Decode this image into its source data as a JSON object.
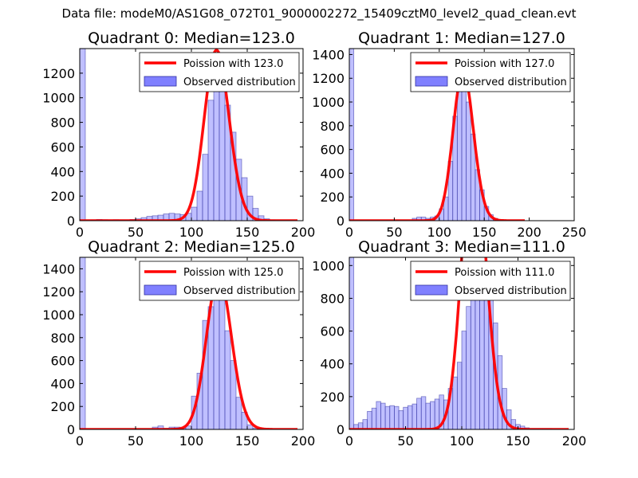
{
  "suptitle": "Data file: modeM0/AS1G08_072T01_9000002272_15409cztM0_level2_quad_clean.evt",
  "colors": {
    "bar_fill": "#8080ff",
    "bar_edge": "#3030a0",
    "poisson_line": "#ff0000",
    "axis": "#000000"
  },
  "chart_data": [
    {
      "type": "bar",
      "title": "Quadrant 0: Median=123.0",
      "xlim": [
        0,
        200
      ],
      "ylim": [
        0,
        1400
      ],
      "xticks": [
        0,
        50,
        100,
        150,
        200
      ],
      "yticks": [
        0,
        200,
        400,
        600,
        800,
        1000,
        1200
      ],
      "legend": [
        "Poission with 123.0",
        "Observed distribution"
      ],
      "bin_width": 5,
      "bins": [
        [
          0,
          1400
        ],
        [
          10,
          5
        ],
        [
          15,
          10
        ],
        [
          20,
          8
        ],
        [
          25,
          5
        ],
        [
          30,
          8
        ],
        [
          35,
          6
        ],
        [
          40,
          5
        ],
        [
          45,
          10
        ],
        [
          50,
          15
        ],
        [
          55,
          25
        ],
        [
          60,
          35
        ],
        [
          65,
          40
        ],
        [
          70,
          45
        ],
        [
          75,
          55
        ],
        [
          80,
          60
        ],
        [
          85,
          55
        ],
        [
          90,
          50
        ],
        [
          95,
          60
        ],
        [
          100,
          110
        ],
        [
          105,
          240
        ],
        [
          110,
          540
        ],
        [
          115,
          980
        ],
        [
          120,
          1230
        ],
        [
          125,
          1250
        ],
        [
          130,
          940
        ],
        [
          135,
          720
        ],
        [
          140,
          500
        ],
        [
          145,
          350
        ],
        [
          150,
          200
        ],
        [
          155,
          100
        ],
        [
          160,
          40
        ],
        [
          165,
          15
        ],
        [
          170,
          5
        ]
      ],
      "poisson_mean": 123.0
    },
    {
      "type": "bar",
      "title": "Quadrant 1: Median=127.0",
      "xlim": [
        0,
        250
      ],
      "ylim": [
        0,
        1450
      ],
      "xticks": [
        0,
        50,
        100,
        150,
        200,
        250
      ],
      "yticks": [
        0,
        200,
        400,
        600,
        800,
        1000,
        1200,
        1400
      ],
      "legend": [
        "Poission with 127.0",
        "Observed distribution"
      ],
      "bin_width": 5,
      "bins": [
        [
          0,
          1450
        ],
        [
          70,
          20
        ],
        [
          75,
          30
        ],
        [
          80,
          30
        ],
        [
          85,
          20
        ],
        [
          90,
          30
        ],
        [
          95,
          40
        ],
        [
          100,
          100
        ],
        [
          105,
          200
        ],
        [
          110,
          500
        ],
        [
          115,
          880
        ],
        [
          120,
          1330
        ],
        [
          125,
          1330
        ],
        [
          130,
          1000
        ],
        [
          135,
          730
        ],
        [
          140,
          430
        ],
        [
          145,
          260
        ],
        [
          150,
          120
        ],
        [
          155,
          50
        ],
        [
          160,
          20
        ]
      ],
      "poisson_mean": 127.0
    },
    {
      "type": "bar",
      "title": "Quadrant 2: Median=125.0",
      "xlim": [
        0,
        200
      ],
      "ylim": [
        0,
        1500
      ],
      "xticks": [
        0,
        50,
        100,
        150,
        200
      ],
      "yticks": [
        0,
        200,
        400,
        600,
        800,
        1000,
        1200,
        1400
      ],
      "legend": [
        "Poission with 125.0",
        "Observed distribution"
      ],
      "bin_width": 5,
      "bins": [
        [
          0,
          1500
        ],
        [
          65,
          20
        ],
        [
          70,
          30
        ],
        [
          75,
          10
        ],
        [
          80,
          20
        ],
        [
          85,
          20
        ],
        [
          90,
          10
        ],
        [
          95,
          30
        ],
        [
          100,
          290
        ],
        [
          105,
          490
        ],
        [
          110,
          950
        ],
        [
          115,
          1070
        ],
        [
          120,
          1400
        ],
        [
          125,
          1220
        ],
        [
          130,
          860
        ],
        [
          135,
          600
        ],
        [
          140,
          280
        ],
        [
          145,
          150
        ],
        [
          150,
          40
        ],
        [
          155,
          10
        ]
      ],
      "poisson_mean": 125.0
    },
    {
      "type": "bar",
      "title": "Quadrant 3: Median=111.0",
      "xlim": [
        0,
        200
      ],
      "ylim": [
        0,
        1050
      ],
      "xticks": [
        0,
        50,
        100,
        150,
        200
      ],
      "yticks": [
        0,
        200,
        400,
        600,
        800,
        1000
      ],
      "legend": [
        "Poission with 111.0",
        "Observed distribution"
      ],
      "bin_width": 4,
      "bins": [
        [
          0,
          1050
        ],
        [
          4,
          30
        ],
        [
          8,
          40
        ],
        [
          12,
          60
        ],
        [
          16,
          110
        ],
        [
          20,
          130
        ],
        [
          24,
          170
        ],
        [
          28,
          160
        ],
        [
          32,
          140
        ],
        [
          36,
          145
        ],
        [
          40,
          140
        ],
        [
          44,
          115
        ],
        [
          48,
          135
        ],
        [
          52,
          145
        ],
        [
          56,
          155
        ],
        [
          60,
          190
        ],
        [
          64,
          200
        ],
        [
          68,
          160
        ],
        [
          72,
          170
        ],
        [
          76,
          185
        ],
        [
          80,
          210
        ],
        [
          84,
          180
        ],
        [
          88,
          250
        ],
        [
          92,
          320
        ],
        [
          96,
          410
        ],
        [
          100,
          600
        ],
        [
          104,
          750
        ],
        [
          108,
          900
        ],
        [
          112,
          1010
        ],
        [
          116,
          1000
        ],
        [
          120,
          990
        ],
        [
          124,
          830
        ],
        [
          128,
          650
        ],
        [
          132,
          450
        ],
        [
          136,
          250
        ],
        [
          140,
          120
        ],
        [
          144,
          60
        ],
        [
          148,
          30
        ],
        [
          152,
          20
        ],
        [
          156,
          10
        ],
        [
          160,
          5
        ],
        [
          164,
          5
        ],
        [
          168,
          5
        ],
        [
          172,
          5
        ],
        [
          176,
          5
        ]
      ],
      "poisson_mean": 111.0
    }
  ]
}
